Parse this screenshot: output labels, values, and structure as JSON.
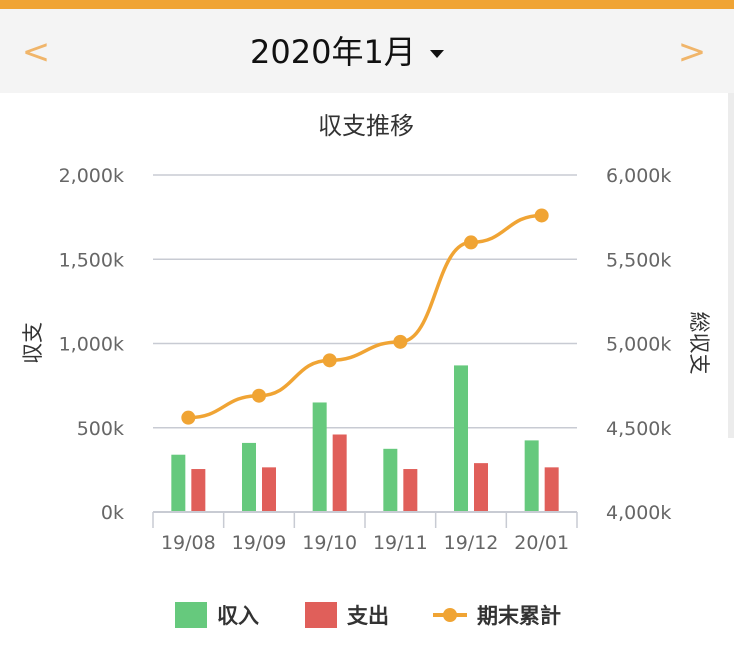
{
  "header": {
    "prev_icon": "chevron-left-icon",
    "next_icon": "chevron-right-icon",
    "prev_glyph": "<",
    "next_glyph": ">",
    "month_label": "2020年1月",
    "dropdown_icon": "caret-down-icon"
  },
  "colors": {
    "accent": "#f0a434",
    "income": "#66c97d",
    "expense": "#e05f5a",
    "cumulative": "#f0a434",
    "grid": "#c8cbd3",
    "axis_text": "#666666"
  },
  "chart_data": {
    "type": "bar",
    "title": "収支推移",
    "categories": [
      "19/08",
      "19/09",
      "19/10",
      "19/11",
      "19/12",
      "20/01"
    ],
    "y_left": {
      "label": "収支",
      "range": [
        0,
        2000
      ],
      "ticks": [
        0,
        500,
        1000,
        1500,
        2000
      ],
      "tick_labels": [
        "0k",
        "500k",
        "1,000k",
        "1,500k",
        "2,000k"
      ]
    },
    "y_right": {
      "label": "総収支",
      "range": [
        4000,
        6000
      ],
      "ticks": [
        4000,
        4500,
        5000,
        5500,
        6000
      ],
      "tick_labels": [
        "4,000k",
        "4,500k",
        "5,000k",
        "5,500k",
        "6,000k"
      ]
    },
    "series": [
      {
        "name": "収入",
        "type": "bar",
        "axis": "left",
        "color": "#66c97d",
        "values": [
          340,
          410,
          650,
          375,
          870,
          425
        ]
      },
      {
        "name": "支出",
        "type": "bar",
        "axis": "left",
        "color": "#e05f5a",
        "values": [
          255,
          265,
          460,
          255,
          290,
          265
        ]
      },
      {
        "name": "期末累計",
        "type": "line",
        "axis": "right",
        "color": "#f0a434",
        "values": [
          4560,
          4690,
          4900,
          5010,
          5600,
          5760
        ]
      }
    ],
    "legend_position": "bottom",
    "grid": true
  }
}
